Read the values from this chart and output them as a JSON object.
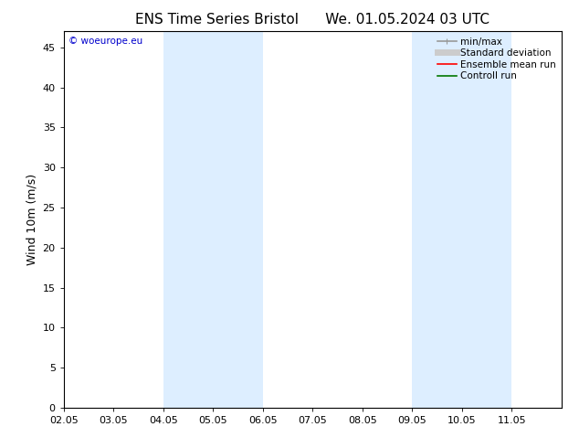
{
  "title_left": "ENS Time Series Bristol",
  "title_right": "We. 01.05.2024 03 UTC",
  "ylabel": "Wind 10m (m/s)",
  "xlim": [
    0,
    10
  ],
  "ylim": [
    0,
    47
  ],
  "yticks": [
    0,
    5,
    10,
    15,
    20,
    25,
    30,
    35,
    40,
    45
  ],
  "xtick_labels": [
    "02.05",
    "03.05",
    "04.05",
    "05.05",
    "06.05",
    "07.05",
    "08.05",
    "09.05",
    "10.05",
    "11.05"
  ],
  "xtick_positions": [
    0,
    1,
    2,
    3,
    4,
    5,
    6,
    7,
    8,
    9
  ],
  "shaded_bands": [
    {
      "xmin": 2.0,
      "xmax": 4.0,
      "color": "#ddeeff"
    },
    {
      "xmin": 7.0,
      "xmax": 9.0,
      "color": "#ddeeff"
    }
  ],
  "watermark_text": "© woeurope.eu",
  "watermark_color": "#0000cc",
  "background_color": "#ffffff",
  "legend_entries": [
    {
      "label": "min/max",
      "color": "#999999",
      "lw": 1.2
    },
    {
      "label": "Standard deviation",
      "color": "#cccccc",
      "lw": 5
    },
    {
      "label": "Ensemble mean run",
      "color": "#ff0000",
      "lw": 1.2
    },
    {
      "label": "Controll run",
      "color": "#007700",
      "lw": 1.2
    }
  ],
  "title_fontsize": 11,
  "axis_fontsize": 9,
  "tick_fontsize": 8,
  "legend_fontsize": 7.5
}
